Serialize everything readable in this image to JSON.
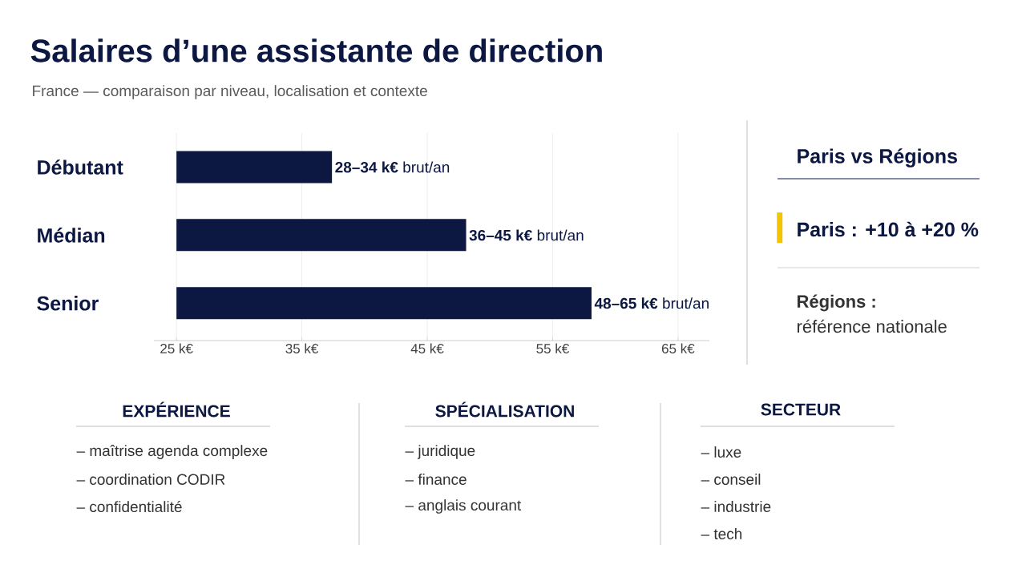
{
  "chart_data": [
    {
      "type": "bar",
      "orientation": "horizontal",
      "title": "Salaires d’une assistante de direction",
      "subtitle": "France — comparaison par niveau, localisation et contexte",
      "categories": [
        "Débutant",
        "Médian",
        "Senior"
      ],
      "base": [
        25,
        25,
        25
      ],
      "values": [
        12.4,
        23.1,
        33.1
      ],
      "color": "#0d1842",
      "value_labels": [
        "**28–34 k€** brut/an",
        "**36–45 k€** brut/an",
        "**48–65 k€** brut/an"
      ],
      "xlim": [
        23.2,
        67.5
      ],
      "xticks": [
        {
          "value": 25,
          "label": "25 k€"
        },
        {
          "value": 35,
          "label": "35 k€"
        },
        {
          "value": 45,
          "label": "45 k€"
        },
        {
          "value": 55,
          "label": "55 k€"
        },
        {
          "value": 65,
          "label": "65 k€"
        }
      ],
      "grid": "x"
    },
    {
      "type": "other",
      "title": "Paris vs Régions",
      "annotations": [
        "Paris : +10 à +20 %",
        "Régions :",
        "référence nationale"
      ]
    },
    {
      "type": "other",
      "title": "EXPÉRIENCE",
      "annotations": [
        "– maîtrise agenda complexe",
        "– coordination CODIR",
        "– confidentialité"
      ]
    },
    {
      "type": "other",
      "title": "SPÉCIALISATION",
      "annotations": [
        "– juridique",
        "– finance",
        "– anglais courant"
      ]
    },
    {
      "type": "other",
      "title": "SECTEUR",
      "annotations": [
        "– luxe",
        "– conseil",
        "– industrie",
        "– tech"
      ]
    }
  ]
}
